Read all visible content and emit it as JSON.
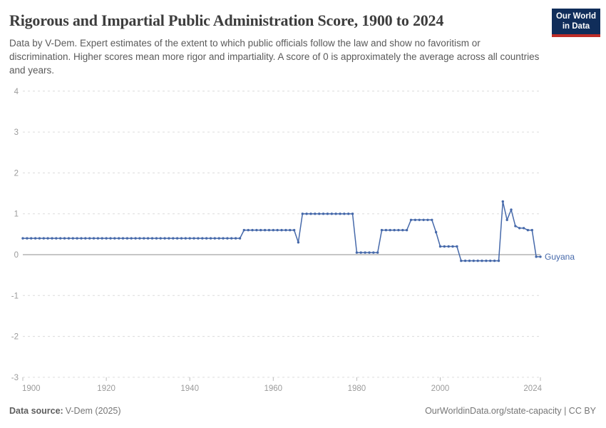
{
  "header": {
    "title": "Rigorous and Impartial Public Administration Score, 1900 to 2024",
    "subtitle": "Data by V-Dem. Expert estimates of the extent to which public officials follow the law and show no favoritism or discrimination. Higher scores mean more rigor and impartiality. A score of 0 is approximately the average across all countries and years.",
    "logo": {
      "line1": "Our World",
      "line2": "in Data",
      "bg_color": "#102d5a",
      "bar_color": "#be2d28"
    }
  },
  "chart_data": {
    "type": "line",
    "title": "Rigorous and Impartial Public Administration Score, 1900 to 2024",
    "xlabel": "",
    "ylabel": "",
    "xlim": [
      1900,
      2024
    ],
    "ylim": [
      -3,
      4
    ],
    "x_ticks": [
      1900,
      1920,
      1940,
      1960,
      1980,
      2000,
      2024
    ],
    "y_ticks": [
      4,
      3,
      2,
      1,
      0,
      -1,
      -2,
      -3
    ],
    "grid": "horizontal-dashed",
    "zero_line": true,
    "legend_position": "end-of-line-label",
    "colors": {
      "gridline": "#dcdcdc",
      "zero_line": "#a3a3a3",
      "tick": "#bbbbbb",
      "axis_text": "#9b9b9b"
    },
    "series": [
      {
        "name": "Guyana",
        "color": "#4669aa",
        "start_year": 1900,
        "end_year": 2024,
        "values": [
          0.4,
          0.4,
          0.4,
          0.4,
          0.4,
          0.4,
          0.4,
          0.4,
          0.4,
          0.4,
          0.4,
          0.4,
          0.4,
          0.4,
          0.4,
          0.4,
          0.4,
          0.4,
          0.4,
          0.4,
          0.4,
          0.4,
          0.4,
          0.4,
          0.4,
          0.4,
          0.4,
          0.4,
          0.4,
          0.4,
          0.4,
          0.4,
          0.4,
          0.4,
          0.4,
          0.4,
          0.4,
          0.4,
          0.4,
          0.4,
          0.4,
          0.4,
          0.4,
          0.4,
          0.4,
          0.4,
          0.4,
          0.4,
          0.4,
          0.4,
          0.4,
          0.4,
          0.4,
          0.6,
          0.6,
          0.6,
          0.6,
          0.6,
          0.6,
          0.6,
          0.6,
          0.6,
          0.6,
          0.6,
          0.6,
          0.6,
          0.3,
          1,
          1,
          1,
          1,
          1,
          1,
          1,
          1,
          1,
          1,
          1,
          1,
          1,
          0.05,
          0.05,
          0.05,
          0.05,
          0.05,
          0.05,
          0.6,
          0.6,
          0.6,
          0.6,
          0.6,
          0.6,
          0.6,
          0.85,
          0.85,
          0.85,
          0.85,
          0.85,
          0.85,
          0.55,
          0.2,
          0.2,
          0.2,
          0.2,
          0.2,
          -0.15,
          -0.15,
          -0.15,
          -0.15,
          -0.15,
          -0.15,
          -0.15,
          -0.15,
          -0.15,
          -0.15,
          1.3,
          0.85,
          1.1,
          0.7,
          0.65,
          0.65,
          0.6,
          0.6,
          -0.05,
          -0.05
        ]
      }
    ]
  },
  "footer": {
    "source_label": "Data source:",
    "source_value": "V-Dem (2025)",
    "attribution": "OurWorldinData.org/state-capacity | CC BY"
  }
}
